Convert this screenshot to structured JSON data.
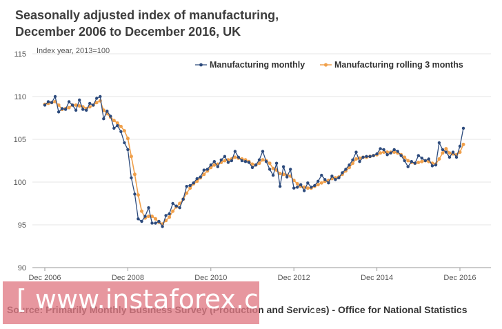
{
  "title_line1": "Seasonally adjusted index of manufacturing,",
  "title_line2": "December 2006 to December 2016, UK",
  "source": "Source: Primarily Monthly Business Survey (Production and Services)  - Office for National Statistics",
  "watermark": "[ www.instaforex.com ]",
  "chart_data": {
    "type": "line",
    "ylabel": "Index year, 2013=100",
    "ylim": [
      90,
      115
    ],
    "yticks": [
      90,
      95,
      100,
      105,
      110,
      115
    ],
    "xticks": [
      "Dec 2006",
      "Dec 2008",
      "Dec 2010",
      "Dec 2012",
      "Dec 2014",
      "Dec 2016"
    ],
    "grid": true,
    "legend_position": "top-right",
    "colors": {
      "monthly": "#2c4a7c",
      "rolling": "#f0a04b"
    },
    "series": [
      {
        "name": "Manufacturing monthly",
        "values": [
          109.0,
          109.4,
          109.3,
          110.0,
          108.2,
          108.6,
          108.5,
          109.4,
          109.0,
          108.4,
          109.6,
          108.5,
          108.4,
          109.2,
          109.0,
          109.8,
          110.0,
          107.4,
          108.3,
          107.7,
          106.3,
          106.6,
          105.9,
          104.6,
          103.8,
          100.5,
          98.6,
          95.7,
          95.4,
          96.0,
          97.0,
          95.2,
          95.2,
          95.4,
          94.8,
          96.1,
          96.3,
          97.5,
          97.2,
          97.0,
          98.0,
          99.5,
          99.6,
          99.9,
          100.4,
          100.6,
          101.4,
          101.5,
          102.0,
          102.4,
          101.8,
          102.6,
          103.0,
          102.3,
          102.5,
          103.6,
          102.9,
          102.5,
          102.4,
          102.3,
          101.7,
          102.0,
          102.6,
          103.6,
          102.4,
          101.5,
          100.8,
          102.2,
          99.5,
          101.8,
          100.6,
          101.5,
          99.3,
          99.4,
          99.7,
          99.0,
          99.9,
          99.4,
          99.6,
          100.1,
          100.8,
          100.3,
          99.9,
          100.7,
          100.3,
          100.5,
          101.1,
          101.5,
          102.0,
          102.6,
          103.5,
          102.4,
          102.9,
          103.0,
          103.0,
          103.1,
          103.3,
          103.9,
          103.8,
          103.2,
          103.4,
          103.8,
          103.6,
          103.1,
          102.5,
          101.8,
          102.4,
          102.2,
          103.1,
          102.8,
          102.5,
          102.7,
          101.9,
          102.0,
          104.6,
          103.8,
          103.5,
          102.9,
          103.5,
          102.9,
          104.2,
          106.3
        ]
      },
      {
        "name": "Manufacturing rolling 3 months",
        "values": [
          109.1,
          109.2,
          109.3,
          109.4,
          109.0,
          108.5,
          108.6,
          108.7,
          109.0,
          109.0,
          108.9,
          108.8,
          108.6,
          108.8,
          109.0,
          109.3,
          109.5,
          108.4,
          108.0,
          107.6,
          107.2,
          106.9,
          106.5,
          106.0,
          105.1,
          103.0,
          100.9,
          98.5,
          96.6,
          95.8,
          96.0,
          96.0,
          95.7,
          95.3,
          95.1,
          95.5,
          95.9,
          96.6,
          97.1,
          97.5,
          98.0,
          98.7,
          99.3,
          99.8,
          100.1,
          100.5,
          100.9,
          101.3,
          101.7,
          102.0,
          102.1,
          102.3,
          102.5,
          102.6,
          102.7,
          102.9,
          102.8,
          102.7,
          102.6,
          102.4,
          102.1,
          102.0,
          102.2,
          102.6,
          102.5,
          102.2,
          101.6,
          101.4,
          101.0,
          100.9,
          100.8,
          100.7,
          100.2,
          99.8,
          99.5,
          99.4,
          99.3,
          99.3,
          99.5,
          99.7,
          99.9,
          100.1,
          100.2,
          100.4,
          100.5,
          100.6,
          100.9,
          101.3,
          101.7,
          102.2,
          102.7,
          102.8,
          102.9,
          102.9,
          103.0,
          103.1,
          103.2,
          103.4,
          103.5,
          103.5,
          103.5,
          103.5,
          103.4,
          103.2,
          102.9,
          102.5,
          102.3,
          102.2,
          102.3,
          102.4,
          102.5,
          102.4,
          102.2,
          102.1,
          102.7,
          103.4,
          103.9,
          103.4,
          103.3,
          103.2,
          103.5,
          104.4
        ]
      }
    ]
  }
}
